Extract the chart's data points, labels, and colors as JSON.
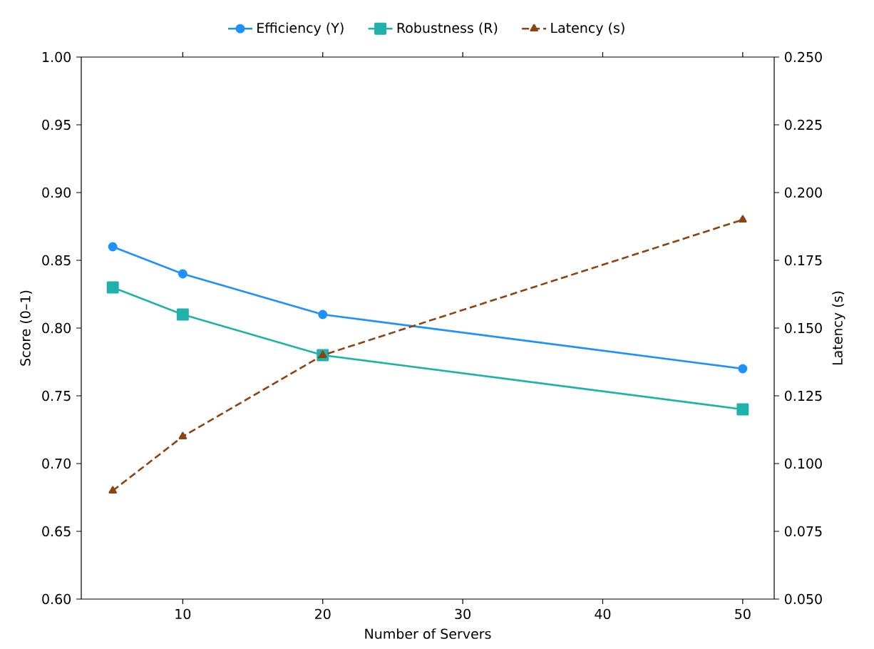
{
  "chart_data": {
    "type": "line",
    "xlabel": "Number of Servers",
    "ylabel": "Score (0–1)",
    "y2label": "Latency (s)",
    "x": [
      5,
      10,
      20,
      50
    ],
    "series": [
      {
        "name": "Efficiency (Y)",
        "color": "#1e90ff",
        "values": [
          0.86,
          0.84,
          0.81,
          0.77
        ],
        "marker": "circle",
        "line_style": "solid"
      },
      {
        "name": "Robustness (R)",
        "color": "#20b2aa",
        "values": [
          0.83,
          0.81,
          0.78,
          0.74
        ],
        "marker": "square",
        "line_style": "solid"
      },
      {
        "name": "Latency (s)",
        "color": "#8b4513",
        "values": [
          0.09,
          0.11,
          0.14,
          0.19
        ],
        "marker": "triangle",
        "line_style": "dashed",
        "axis": "y2"
      }
    ],
    "xlim": [
      2.75,
      52.25
    ],
    "xticks": [
      10,
      20,
      30,
      40,
      50
    ],
    "ylim": [
      0.6,
      1.0
    ],
    "yticks": [
      {
        "value": 0.6,
        "label": "0.60"
      },
      {
        "value": 0.65,
        "label": "0.65"
      },
      {
        "value": 0.7,
        "label": "0.70"
      },
      {
        "value": 0.75,
        "label": "0.75"
      },
      {
        "value": 0.8,
        "label": "0.80"
      },
      {
        "value": 0.85,
        "label": "0.85"
      },
      {
        "value": 0.9,
        "label": "0.90"
      },
      {
        "value": 0.95,
        "label": "0.95"
      },
      {
        "value": 1.0,
        "label": "1.00"
      }
    ],
    "y2lim": [
      0.05,
      0.25
    ],
    "y2ticks": [
      {
        "value": 0.05,
        "label": "0.050"
      },
      {
        "value": 0.075,
        "label": "0.075"
      },
      {
        "value": 0.1,
        "label": "0.100"
      },
      {
        "value": 0.125,
        "label": "0.125"
      },
      {
        "value": 0.15,
        "label": "0.150"
      },
      {
        "value": 0.175,
        "label": "0.175"
      },
      {
        "value": 0.2,
        "label": "0.200"
      },
      {
        "value": 0.225,
        "label": "0.225"
      },
      {
        "value": 0.25,
        "label": "0.250"
      }
    ],
    "legend": "top",
    "grid": false
  }
}
